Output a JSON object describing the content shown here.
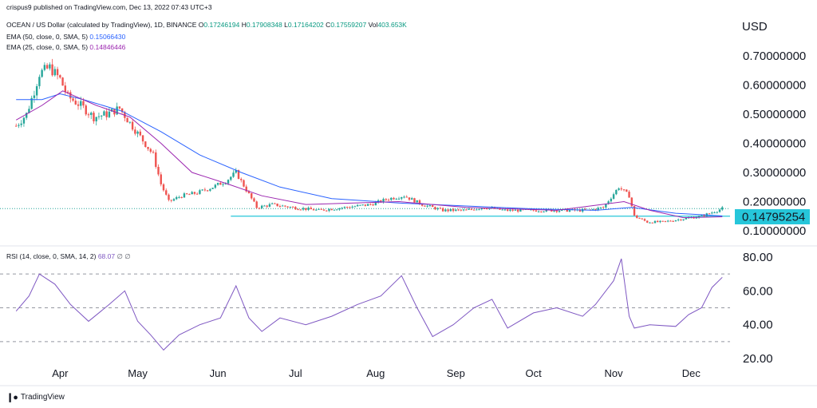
{
  "header": {
    "publisher": "crispus9 published on TradingView.com, Dec 13, 2022 07:43 UTC+3",
    "symbol": "OCEAN / US Dollar (calculated by TradingView), 1D, BINANCE",
    "o_label": "O",
    "o": "0.17246194",
    "h_label": "H",
    "h": "0.17908348",
    "l_label": "L",
    "l": "0.17164202",
    "c_label": "C",
    "c": "0.17559207",
    "vol_label": "Vol",
    "vol": "403.653K",
    "ema50": "EMA (50, close, 0, SMA, 5)",
    "ema50_val": "0.15066430",
    "ema25": "EMA (25, close, 0, SMA, 5)",
    "ema25_val": "0.14846446",
    "rsi": "RSI (14, close, 0, SMA, 14, 2)",
    "rsi_val": "68.07",
    "rsi_extra": "∅ ∅"
  },
  "axis": {
    "currency": "USD",
    "price_marker": "0.14795254"
  },
  "footer": {
    "brand": "TradingView"
  },
  "colors": {
    "up": "#26a69a",
    "down": "#ef5350",
    "ema50": "#2962ff",
    "ema25": "#9c27b0",
    "rsi": "#7e57c2",
    "marker": "#26c6da"
  },
  "chart_data": [
    {
      "type": "candlestick",
      "title": "OCEAN / US Dollar, 1D, BINANCE",
      "y_ticks": [
        "0.70000000",
        "0.60000000",
        "0.50000000",
        "0.40000000",
        "0.30000000",
        "0.20000000",
        "0.10000000"
      ],
      "x_ticks": [
        "Apr",
        "May",
        "Jun",
        "Jul",
        "Aug",
        "Sep",
        "Oct",
        "Nov",
        "Dec"
      ],
      "ylim": [
        0.05,
        0.75
      ],
      "horizontal_level": 0.15,
      "last_price": 0.14795254,
      "close_trend": [
        {
          "date": "2022-03-15",
          "close": 0.46
        },
        {
          "date": "2022-03-19",
          "close": 0.5
        },
        {
          "date": "2022-03-22",
          "close": 0.58
        },
        {
          "date": "2022-03-24",
          "close": 0.64
        },
        {
          "date": "2022-03-28",
          "close": 0.66
        },
        {
          "date": "2022-04-01",
          "close": 0.62
        },
        {
          "date": "2022-04-04",
          "close": 0.56
        },
        {
          "date": "2022-04-09",
          "close": 0.53
        },
        {
          "date": "2022-04-14",
          "close": 0.49
        },
        {
          "date": "2022-04-19",
          "close": 0.5
        },
        {
          "date": "2022-04-24",
          "close": 0.52
        },
        {
          "date": "2022-04-28",
          "close": 0.47
        },
        {
          "date": "2022-05-03",
          "close": 0.41
        },
        {
          "date": "2022-05-07",
          "close": 0.36
        },
        {
          "date": "2022-05-10",
          "close": 0.26
        },
        {
          "date": "2022-05-13",
          "close": 0.2
        },
        {
          "date": "2022-05-18",
          "close": 0.22
        },
        {
          "date": "2022-05-24",
          "close": 0.23
        },
        {
          "date": "2022-05-30",
          "close": 0.25
        },
        {
          "date": "2022-06-04",
          "close": 0.27
        },
        {
          "date": "2022-06-08",
          "close": 0.3
        },
        {
          "date": "2022-06-12",
          "close": 0.24
        },
        {
          "date": "2022-06-16",
          "close": 0.18
        },
        {
          "date": "2022-06-22",
          "close": 0.19
        },
        {
          "date": "2022-06-30",
          "close": 0.18
        },
        {
          "date": "2022-07-10",
          "close": 0.17
        },
        {
          "date": "2022-07-20",
          "close": 0.18
        },
        {
          "date": "2022-07-30",
          "close": 0.19
        },
        {
          "date": "2022-08-06",
          "close": 0.21
        },
        {
          "date": "2022-08-12",
          "close": 0.22
        },
        {
          "date": "2022-08-19",
          "close": 0.19
        },
        {
          "date": "2022-08-27",
          "close": 0.17
        },
        {
          "date": "2022-09-05",
          "close": 0.17
        },
        {
          "date": "2022-09-12",
          "close": 0.18
        },
        {
          "date": "2022-09-20",
          "close": 0.17
        },
        {
          "date": "2022-10-01",
          "close": 0.17
        },
        {
          "date": "2022-10-12",
          "close": 0.17
        },
        {
          "date": "2022-10-22",
          "close": 0.17
        },
        {
          "date": "2022-10-28",
          "close": 0.18
        },
        {
          "date": "2022-11-03",
          "close": 0.25
        },
        {
          "date": "2022-11-07",
          "close": 0.22
        },
        {
          "date": "2022-11-09",
          "close": 0.15
        },
        {
          "date": "2022-11-14",
          "close": 0.13
        },
        {
          "date": "2022-11-20",
          "close": 0.13
        },
        {
          "date": "2022-11-27",
          "close": 0.14
        },
        {
          "date": "2022-12-05",
          "close": 0.15
        },
        {
          "date": "2022-12-13",
          "close": 0.176
        }
      ],
      "ema50_trend": [
        {
          "date": "2022-03-15",
          "v": 0.55
        },
        {
          "date": "2022-03-25",
          "v": 0.55
        },
        {
          "date": "2022-04-01",
          "v": 0.57
        },
        {
          "date": "2022-04-10",
          "v": 0.55
        },
        {
          "date": "2022-04-25",
          "v": 0.51
        },
        {
          "date": "2022-05-10",
          "v": 0.44
        },
        {
          "date": "2022-05-25",
          "v": 0.36
        },
        {
          "date": "2022-06-10",
          "v": 0.3
        },
        {
          "date": "2022-06-25",
          "v": 0.25
        },
        {
          "date": "2022-07-15",
          "v": 0.21
        },
        {
          "date": "2022-08-10",
          "v": 0.195
        },
        {
          "date": "2022-09-05",
          "v": 0.185
        },
        {
          "date": "2022-10-01",
          "v": 0.175
        },
        {
          "date": "2022-10-25",
          "v": 0.17
        },
        {
          "date": "2022-11-08",
          "v": 0.18
        },
        {
          "date": "2022-11-25",
          "v": 0.16
        },
        {
          "date": "2022-12-13",
          "v": 0.151
        }
      ],
      "ema25_trend": [
        {
          "date": "2022-03-15",
          "v": 0.48
        },
        {
          "date": "2022-03-25",
          "v": 0.53
        },
        {
          "date": "2022-04-02",
          "v": 0.58
        },
        {
          "date": "2022-04-15",
          "v": 0.53
        },
        {
          "date": "2022-04-28",
          "v": 0.49
        },
        {
          "date": "2022-05-10",
          "v": 0.4
        },
        {
          "date": "2022-05-22",
          "v": 0.3
        },
        {
          "date": "2022-06-05",
          "v": 0.26
        },
        {
          "date": "2022-06-18",
          "v": 0.22
        },
        {
          "date": "2022-07-05",
          "v": 0.19
        },
        {
          "date": "2022-08-10",
          "v": 0.2
        },
        {
          "date": "2022-09-05",
          "v": 0.18
        },
        {
          "date": "2022-10-10",
          "v": 0.17
        },
        {
          "date": "2022-11-05",
          "v": 0.2
        },
        {
          "date": "2022-11-15",
          "v": 0.17
        },
        {
          "date": "2022-11-28",
          "v": 0.145
        },
        {
          "date": "2022-12-13",
          "v": 0.148
        }
      ]
    },
    {
      "type": "line",
      "title": "RSI (14, close, 0, SMA, 14, 2)",
      "y_ticks": [
        "80.00",
        "60.00",
        "40.00",
        "20.00"
      ],
      "ylim": [
        20,
        80
      ],
      "levels": [
        70,
        50,
        30
      ],
      "series": [
        {
          "values": [
            {
              "date": "2022-03-15",
              "v": 48
            },
            {
              "date": "2022-03-20",
              "v": 57
            },
            {
              "date": "2022-03-24",
              "v": 70
            },
            {
              "date": "2022-03-30",
              "v": 64
            },
            {
              "date": "2022-04-05",
              "v": 52
            },
            {
              "date": "2022-04-12",
              "v": 42
            },
            {
              "date": "2022-04-20",
              "v": 52
            },
            {
              "date": "2022-04-26",
              "v": 60
            },
            {
              "date": "2022-05-01",
              "v": 42
            },
            {
              "date": "2022-05-06",
              "v": 34
            },
            {
              "date": "2022-05-11",
              "v": 25
            },
            {
              "date": "2022-05-17",
              "v": 34
            },
            {
              "date": "2022-05-25",
              "v": 40
            },
            {
              "date": "2022-06-02",
              "v": 44
            },
            {
              "date": "2022-06-08",
              "v": 63
            },
            {
              "date": "2022-06-13",
              "v": 44
            },
            {
              "date": "2022-06-18",
              "v": 36
            },
            {
              "date": "2022-06-25",
              "v": 44
            },
            {
              "date": "2022-07-05",
              "v": 40
            },
            {
              "date": "2022-07-15",
              "v": 45
            },
            {
              "date": "2022-07-25",
              "v": 52
            },
            {
              "date": "2022-08-03",
              "v": 57
            },
            {
              "date": "2022-08-11",
              "v": 69
            },
            {
              "date": "2022-08-17",
              "v": 50
            },
            {
              "date": "2022-08-23",
              "v": 33
            },
            {
              "date": "2022-08-31",
              "v": 40
            },
            {
              "date": "2022-09-08",
              "v": 50
            },
            {
              "date": "2022-09-15",
              "v": 55
            },
            {
              "date": "2022-09-21",
              "v": 38
            },
            {
              "date": "2022-10-01",
              "v": 47
            },
            {
              "date": "2022-10-10",
              "v": 50
            },
            {
              "date": "2022-10-20",
              "v": 45
            },
            {
              "date": "2022-10-25",
              "v": 52
            },
            {
              "date": "2022-11-01",
              "v": 66
            },
            {
              "date": "2022-11-04",
              "v": 79
            },
            {
              "date": "2022-11-07",
              "v": 45
            },
            {
              "date": "2022-11-09",
              "v": 38
            },
            {
              "date": "2022-11-15",
              "v": 40
            },
            {
              "date": "2022-11-25",
              "v": 39
            },
            {
              "date": "2022-11-30",
              "v": 46
            },
            {
              "date": "2022-12-05",
              "v": 50
            },
            {
              "date": "2022-12-09",
              "v": 62
            },
            {
              "date": "2022-12-13",
              "v": 68.07
            }
          ]
        }
      ]
    }
  ]
}
